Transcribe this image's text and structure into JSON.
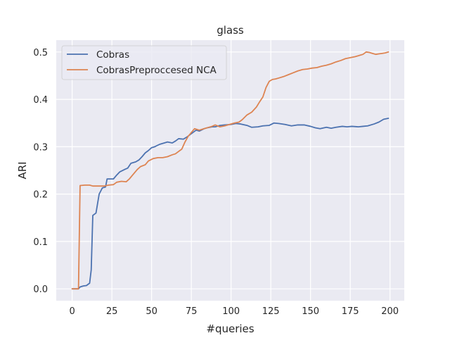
{
  "chart_data": {
    "type": "line",
    "title": "glass",
    "xlabel": "#queries",
    "ylabel": "ARI",
    "xlim": [
      -10,
      209
    ],
    "ylim": [
      -0.025,
      0.525
    ],
    "xticks": [
      0,
      25,
      50,
      75,
      100,
      125,
      150,
      175,
      200
    ],
    "yticks": [
      0.0,
      0.1,
      0.2,
      0.3,
      0.4,
      0.5
    ],
    "xtick_labels": [
      "0",
      "25",
      "50",
      "75",
      "100",
      "125",
      "150",
      "175",
      "200"
    ],
    "ytick_labels": [
      "0.0",
      "0.1",
      "0.2",
      "0.3",
      "0.4",
      "0.5"
    ],
    "grid": true,
    "legend_position": "top-left",
    "series": [
      {
        "name": "Cobras",
        "color": "#4c72b0",
        "points": [
          [
            0,
            0.0
          ],
          [
            4,
            0.0
          ],
          [
            5,
            0.004
          ],
          [
            7,
            0.006
          ],
          [
            9,
            0.007
          ],
          [
            11,
            0.012
          ],
          [
            12,
            0.04
          ],
          [
            13,
            0.155
          ],
          [
            15,
            0.16
          ],
          [
            17,
            0.2
          ],
          [
            19,
            0.213
          ],
          [
            21,
            0.215
          ],
          [
            22,
            0.232
          ],
          [
            26,
            0.232
          ],
          [
            28,
            0.24
          ],
          [
            30,
            0.247
          ],
          [
            33,
            0.252
          ],
          [
            35,
            0.255
          ],
          [
            37,
            0.265
          ],
          [
            40,
            0.268
          ],
          [
            42,
            0.272
          ],
          [
            44,
            0.279
          ],
          [
            46,
            0.287
          ],
          [
            48,
            0.292
          ],
          [
            50,
            0.298
          ],
          [
            52,
            0.3
          ],
          [
            55,
            0.305
          ],
          [
            58,
            0.308
          ],
          [
            60,
            0.31
          ],
          [
            63,
            0.308
          ],
          [
            65,
            0.312
          ],
          [
            67,
            0.317
          ],
          [
            70,
            0.316
          ],
          [
            72,
            0.32
          ],
          [
            74,
            0.325
          ],
          [
            76,
            0.33
          ],
          [
            78,
            0.335
          ],
          [
            80,
            0.333
          ],
          [
            83,
            0.338
          ],
          [
            85,
            0.34
          ],
          [
            88,
            0.342
          ],
          [
            90,
            0.342
          ],
          [
            93,
            0.345
          ],
          [
            96,
            0.346
          ],
          [
            100,
            0.347
          ],
          [
            103,
            0.349
          ],
          [
            106,
            0.348
          ],
          [
            110,
            0.345
          ],
          [
            113,
            0.341
          ],
          [
            117,
            0.342
          ],
          [
            120,
            0.344
          ],
          [
            124,
            0.345
          ],
          [
            127,
            0.35
          ],
          [
            130,
            0.349
          ],
          [
            134,
            0.347
          ],
          [
            138,
            0.344
          ],
          [
            142,
            0.346
          ],
          [
            146,
            0.346
          ],
          [
            150,
            0.343
          ],
          [
            153,
            0.34
          ],
          [
            156,
            0.338
          ],
          [
            160,
            0.341
          ],
          [
            163,
            0.339
          ],
          [
            166,
            0.341
          ],
          [
            170,
            0.343
          ],
          [
            173,
            0.342
          ],
          [
            176,
            0.343
          ],
          [
            180,
            0.342
          ],
          [
            183,
            0.343
          ],
          [
            186,
            0.344
          ],
          [
            190,
            0.348
          ],
          [
            193,
            0.352
          ],
          [
            196,
            0.358
          ],
          [
            199,
            0.36
          ]
        ]
      },
      {
        "name": "CobrasPreproccesed NCA",
        "color": "#dd8452",
        "points": [
          [
            0,
            0.0
          ],
          [
            3,
            0.0
          ],
          [
            4,
            0.0
          ],
          [
            5,
            0.218
          ],
          [
            8,
            0.219
          ],
          [
            11,
            0.219
          ],
          [
            13,
            0.217
          ],
          [
            16,
            0.217
          ],
          [
            20,
            0.217
          ],
          [
            23,
            0.219
          ],
          [
            26,
            0.22
          ],
          [
            28,
            0.225
          ],
          [
            31,
            0.227
          ],
          [
            34,
            0.226
          ],
          [
            36,
            0.232
          ],
          [
            38,
            0.24
          ],
          [
            41,
            0.252
          ],
          [
            43,
            0.258
          ],
          [
            46,
            0.262
          ],
          [
            48,
            0.27
          ],
          [
            51,
            0.275
          ],
          [
            54,
            0.277
          ],
          [
            57,
            0.277
          ],
          [
            60,
            0.279
          ],
          [
            63,
            0.283
          ],
          [
            65,
            0.285
          ],
          [
            67,
            0.29
          ],
          [
            69,
            0.295
          ],
          [
            71,
            0.31
          ],
          [
            73,
            0.322
          ],
          [
            75,
            0.33
          ],
          [
            77,
            0.338
          ],
          [
            80,
            0.335
          ],
          [
            83,
            0.338
          ],
          [
            85,
            0.34
          ],
          [
            88,
            0.343
          ],
          [
            90,
            0.346
          ],
          [
            93,
            0.342
          ],
          [
            96,
            0.344
          ],
          [
            99,
            0.347
          ],
          [
            102,
            0.35
          ],
          [
            105,
            0.352
          ],
          [
            107,
            0.357
          ],
          [
            110,
            0.367
          ],
          [
            113,
            0.373
          ],
          [
            116,
            0.384
          ],
          [
            118,
            0.395
          ],
          [
            120,
            0.405
          ],
          [
            122,
            0.425
          ],
          [
            124,
            0.438
          ],
          [
            126,
            0.442
          ],
          [
            128,
            0.443
          ],
          [
            130,
            0.445
          ],
          [
            133,
            0.448
          ],
          [
            136,
            0.452
          ],
          [
            139,
            0.456
          ],
          [
            142,
            0.46
          ],
          [
            145,
            0.463
          ],
          [
            148,
            0.464
          ],
          [
            151,
            0.466
          ],
          [
            154,
            0.467
          ],
          [
            157,
            0.47
          ],
          [
            160,
            0.472
          ],
          [
            163,
            0.475
          ],
          [
            166,
            0.479
          ],
          [
            169,
            0.482
          ],
          [
            172,
            0.486
          ],
          [
            175,
            0.488
          ],
          [
            178,
            0.49
          ],
          [
            181,
            0.493
          ],
          [
            183,
            0.495
          ],
          [
            185,
            0.5
          ],
          [
            187,
            0.499
          ],
          [
            189,
            0.497
          ],
          [
            191,
            0.495
          ],
          [
            193,
            0.496
          ],
          [
            195,
            0.497
          ],
          [
            197,
            0.498
          ],
          [
            199,
            0.5
          ]
        ]
      }
    ]
  },
  "colors": {
    "plot_background": "#eaeaf2",
    "grid": "#ffffff",
    "text": "#262626"
  }
}
